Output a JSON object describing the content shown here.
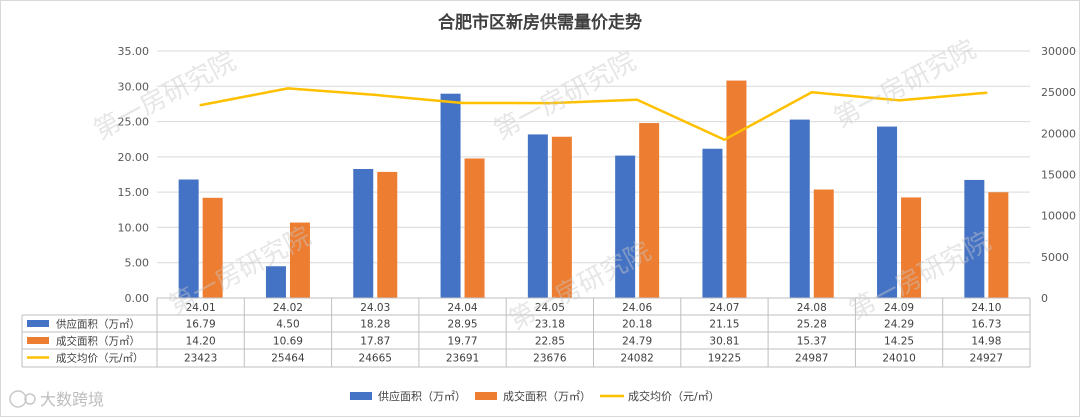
{
  "chart_data": {
    "type": "bar",
    "title": "合肥市区新房供需量价走势",
    "categories": [
      "24.01",
      "24.02",
      "24.03",
      "24.04",
      "24.05",
      "24.06",
      "24.07",
      "24.08",
      "24.09",
      "24.10"
    ],
    "series": [
      {
        "name": "供应面积（万㎡）",
        "type": "bar",
        "axis": "left",
        "color": "#4472C4",
        "values": [
          16.79,
          4.5,
          18.28,
          28.95,
          23.18,
          20.18,
          21.15,
          25.28,
          24.29,
          16.73
        ],
        "labels": [
          "16.79",
          "4.50",
          "18.28",
          "28.95",
          "23.18",
          "20.18",
          "21.15",
          "25.28",
          "24.29",
          "16.73"
        ]
      },
      {
        "name": "成交面积（万㎡）",
        "type": "bar",
        "axis": "left",
        "color": "#ED7D31",
        "values": [
          14.2,
          10.69,
          17.87,
          19.77,
          22.85,
          24.79,
          30.81,
          15.37,
          14.25,
          14.98
        ],
        "labels": [
          "14.20",
          "10.69",
          "17.87",
          "19.77",
          "22.85",
          "24.79",
          "30.81",
          "15.37",
          "14.25",
          "14.98"
        ]
      },
      {
        "name": "成交均价（元/㎡）",
        "type": "line",
        "axis": "right",
        "color": "#FFC000",
        "values": [
          23423,
          25464,
          24665,
          23691,
          23676,
          24082,
          19225,
          24987,
          24010,
          24927
        ],
        "labels": [
          "23423",
          "25464",
          "24665",
          "23691",
          "23676",
          "24082",
          "19225",
          "24987",
          "24010",
          "24927"
        ]
      }
    ],
    "y_left": {
      "min": 0,
      "max": 35,
      "ticks": [
        "0.00",
        "5.00",
        "10.00",
        "15.00",
        "20.00",
        "25.00",
        "30.00",
        "35.00"
      ]
    },
    "y_right": {
      "min": 0,
      "max": 30000,
      "ticks": [
        "0",
        "5000",
        "10000",
        "15000",
        "20000",
        "25000",
        "30000"
      ]
    },
    "grid": true,
    "legend": "bottom",
    "data_table": true
  },
  "watermark": "第一房研究院",
  "logo": "大数跨境"
}
